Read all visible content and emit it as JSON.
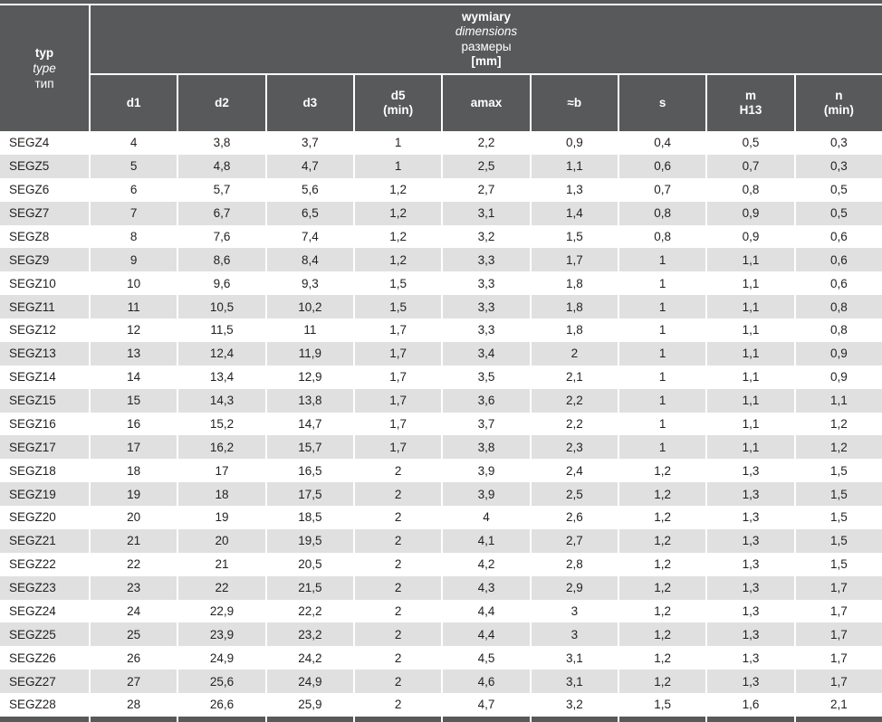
{
  "colors": {
    "header_bg": "#58595b",
    "stripe_bg": "#e0e0e0",
    "row_bg": "#ffffff",
    "header_text": "#ffffff",
    "cell_text": "#231f20"
  },
  "table": {
    "corner_header": {
      "lines": [
        "typ",
        "type",
        "тип"
      ]
    },
    "group_header": {
      "lines": [
        "wymiary",
        "dimensions",
        "размеры",
        "[mm]"
      ]
    },
    "columns": [
      {
        "lines": [
          "d1"
        ]
      },
      {
        "lines": [
          "d2"
        ]
      },
      {
        "lines": [
          "d3"
        ]
      },
      {
        "lines": [
          "d5",
          "(min)"
        ]
      },
      {
        "lines": [
          "amax"
        ]
      },
      {
        "lines": [
          "≈b"
        ]
      },
      {
        "lines": [
          "s"
        ]
      },
      {
        "lines": [
          "m",
          "H13"
        ]
      },
      {
        "lines": [
          "n",
          "(min)"
        ]
      }
    ],
    "rows": [
      {
        "type": "SEGZ4",
        "values": [
          "4",
          "3,8",
          "3,7",
          "1",
          "2,2",
          "0,9",
          "0,4",
          "0,5",
          "0,3"
        ]
      },
      {
        "type": "SEGZ5",
        "values": [
          "5",
          "4,8",
          "4,7",
          "1",
          "2,5",
          "1,1",
          "0,6",
          "0,7",
          "0,3"
        ]
      },
      {
        "type": "SEGZ6",
        "values": [
          "6",
          "5,7",
          "5,6",
          "1,2",
          "2,7",
          "1,3",
          "0,7",
          "0,8",
          "0,5"
        ]
      },
      {
        "type": "SEGZ7",
        "values": [
          "7",
          "6,7",
          "6,5",
          "1,2",
          "3,1",
          "1,4",
          "0,8",
          "0,9",
          "0,5"
        ]
      },
      {
        "type": "SEGZ8",
        "values": [
          "8",
          "7,6",
          "7,4",
          "1,2",
          "3,2",
          "1,5",
          "0,8",
          "0,9",
          "0,6"
        ]
      },
      {
        "type": "SEGZ9",
        "values": [
          "9",
          "8,6",
          "8,4",
          "1,2",
          "3,3",
          "1,7",
          "1",
          "1,1",
          "0,6"
        ]
      },
      {
        "type": "SEGZ10",
        "values": [
          "10",
          "9,6",
          "9,3",
          "1,5",
          "3,3",
          "1,8",
          "1",
          "1,1",
          "0,6"
        ]
      },
      {
        "type": "SEGZ11",
        "values": [
          "11",
          "10,5",
          "10,2",
          "1,5",
          "3,3",
          "1,8",
          "1",
          "1,1",
          "0,8"
        ]
      },
      {
        "type": "SEGZ12",
        "values": [
          "12",
          "11,5",
          "11",
          "1,7",
          "3,3",
          "1,8",
          "1",
          "1,1",
          "0,8"
        ]
      },
      {
        "type": "SEGZ13",
        "values": [
          "13",
          "12,4",
          "11,9",
          "1,7",
          "3,4",
          "2",
          "1",
          "1,1",
          "0,9"
        ]
      },
      {
        "type": "SEGZ14",
        "values": [
          "14",
          "13,4",
          "12,9",
          "1,7",
          "3,5",
          "2,1",
          "1",
          "1,1",
          "0,9"
        ]
      },
      {
        "type": "SEGZ15",
        "values": [
          "15",
          "14,3",
          "13,8",
          "1,7",
          "3,6",
          "2,2",
          "1",
          "1,1",
          "1,1"
        ]
      },
      {
        "type": "SEGZ16",
        "values": [
          "16",
          "15,2",
          "14,7",
          "1,7",
          "3,7",
          "2,2",
          "1",
          "1,1",
          "1,2"
        ]
      },
      {
        "type": "SEGZ17",
        "values": [
          "17",
          "16,2",
          "15,7",
          "1,7",
          "3,8",
          "2,3",
          "1",
          "1,1",
          "1,2"
        ]
      },
      {
        "type": "SEGZ18",
        "values": [
          "18",
          "17",
          "16,5",
          "2",
          "3,9",
          "2,4",
          "1,2",
          "1,3",
          "1,5"
        ]
      },
      {
        "type": "SEGZ19",
        "values": [
          "19",
          "18",
          "17,5",
          "2",
          "3,9",
          "2,5",
          "1,2",
          "1,3",
          "1,5"
        ]
      },
      {
        "type": "SEGZ20",
        "values": [
          "20",
          "19",
          "18,5",
          "2",
          "4",
          "2,6",
          "1,2",
          "1,3",
          "1,5"
        ]
      },
      {
        "type": "SEGZ21",
        "values": [
          "21",
          "20",
          "19,5",
          "2",
          "4,1",
          "2,7",
          "1,2",
          "1,3",
          "1,5"
        ]
      },
      {
        "type": "SEGZ22",
        "values": [
          "22",
          "21",
          "20,5",
          "2",
          "4,2",
          "2,8",
          "1,2",
          "1,3",
          "1,5"
        ]
      },
      {
        "type": "SEGZ23",
        "values": [
          "23",
          "22",
          "21,5",
          "2",
          "4,3",
          "2,9",
          "1,2",
          "1,3",
          "1,7"
        ]
      },
      {
        "type": "SEGZ24",
        "values": [
          "24",
          "22,9",
          "22,2",
          "2",
          "4,4",
          "3",
          "1,2",
          "1,3",
          "1,7"
        ]
      },
      {
        "type": "SEGZ25",
        "values": [
          "25",
          "23,9",
          "23,2",
          "2",
          "4,4",
          "3",
          "1,2",
          "1,3",
          "1,7"
        ]
      },
      {
        "type": "SEGZ26",
        "values": [
          "26",
          "24,9",
          "24,2",
          "2",
          "4,5",
          "3,1",
          "1,2",
          "1,3",
          "1,7"
        ]
      },
      {
        "type": "SEGZ27",
        "values": [
          "27",
          "25,6",
          "24,9",
          "2",
          "4,6",
          "3,1",
          "1,2",
          "1,3",
          "1,7"
        ]
      },
      {
        "type": "SEGZ28",
        "values": [
          "28",
          "26,6",
          "25,9",
          "2",
          "4,7",
          "3,2",
          "1,5",
          "1,6",
          "2,1"
        ]
      }
    ]
  }
}
